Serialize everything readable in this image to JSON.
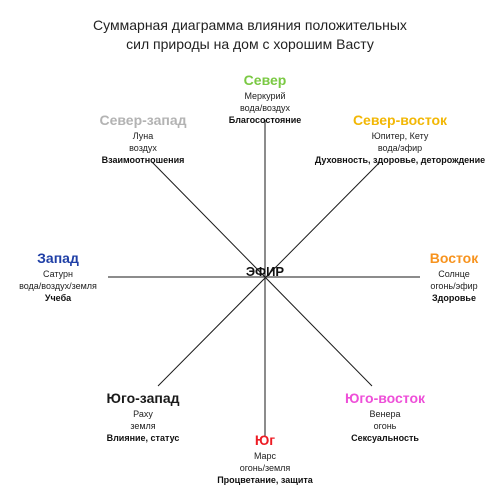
{
  "title": {
    "line1": "Суммарная диаграмма влияния положительных",
    "line2": "сил природы на дом с хорошим Васту"
  },
  "center": {
    "label": "ЭФИР"
  },
  "directions": {
    "north": {
      "name": "Север",
      "color": "#7ac943",
      "planet": "Меркурий",
      "element": "вода/воздух",
      "influence": "Благосостояние"
    },
    "northeast": {
      "name": "Север-восток",
      "color": "#f2b705",
      "planet": "Юпитер, Кету",
      "element": "вода/эфир",
      "influence": "Духовность, здоровье, деторождение"
    },
    "east": {
      "name": "Восток",
      "color": "#f7931e",
      "planet": "Солнце",
      "element": "огонь/эфир",
      "influence": "Здоровье"
    },
    "southeast": {
      "name": "Юго-восток",
      "color": "#ee4fd8",
      "planet": "Венера",
      "element": "огонь",
      "influence": "Сексуальность"
    },
    "south": {
      "name": "Юг",
      "color": "#ed1c24",
      "planet": "Марс",
      "element": "огонь/земля",
      "influence": "Процветание, защита"
    },
    "southwest": {
      "name": "Юго-запад",
      "color": "#1a1a1a",
      "planet": "Раху",
      "element": "земля",
      "influence": "Влияние, статус"
    },
    "west": {
      "name": "Запад",
      "color": "#1f3fa6",
      "planet": "Сатурн",
      "element": "вода/воздух/земля",
      "influence": "Учеба"
    },
    "northwest": {
      "name": "Север-запад",
      "color": "#b3b3b3",
      "planet": "Луна",
      "element": "воздух",
      "influence": "Взаимоотношения"
    }
  }
}
